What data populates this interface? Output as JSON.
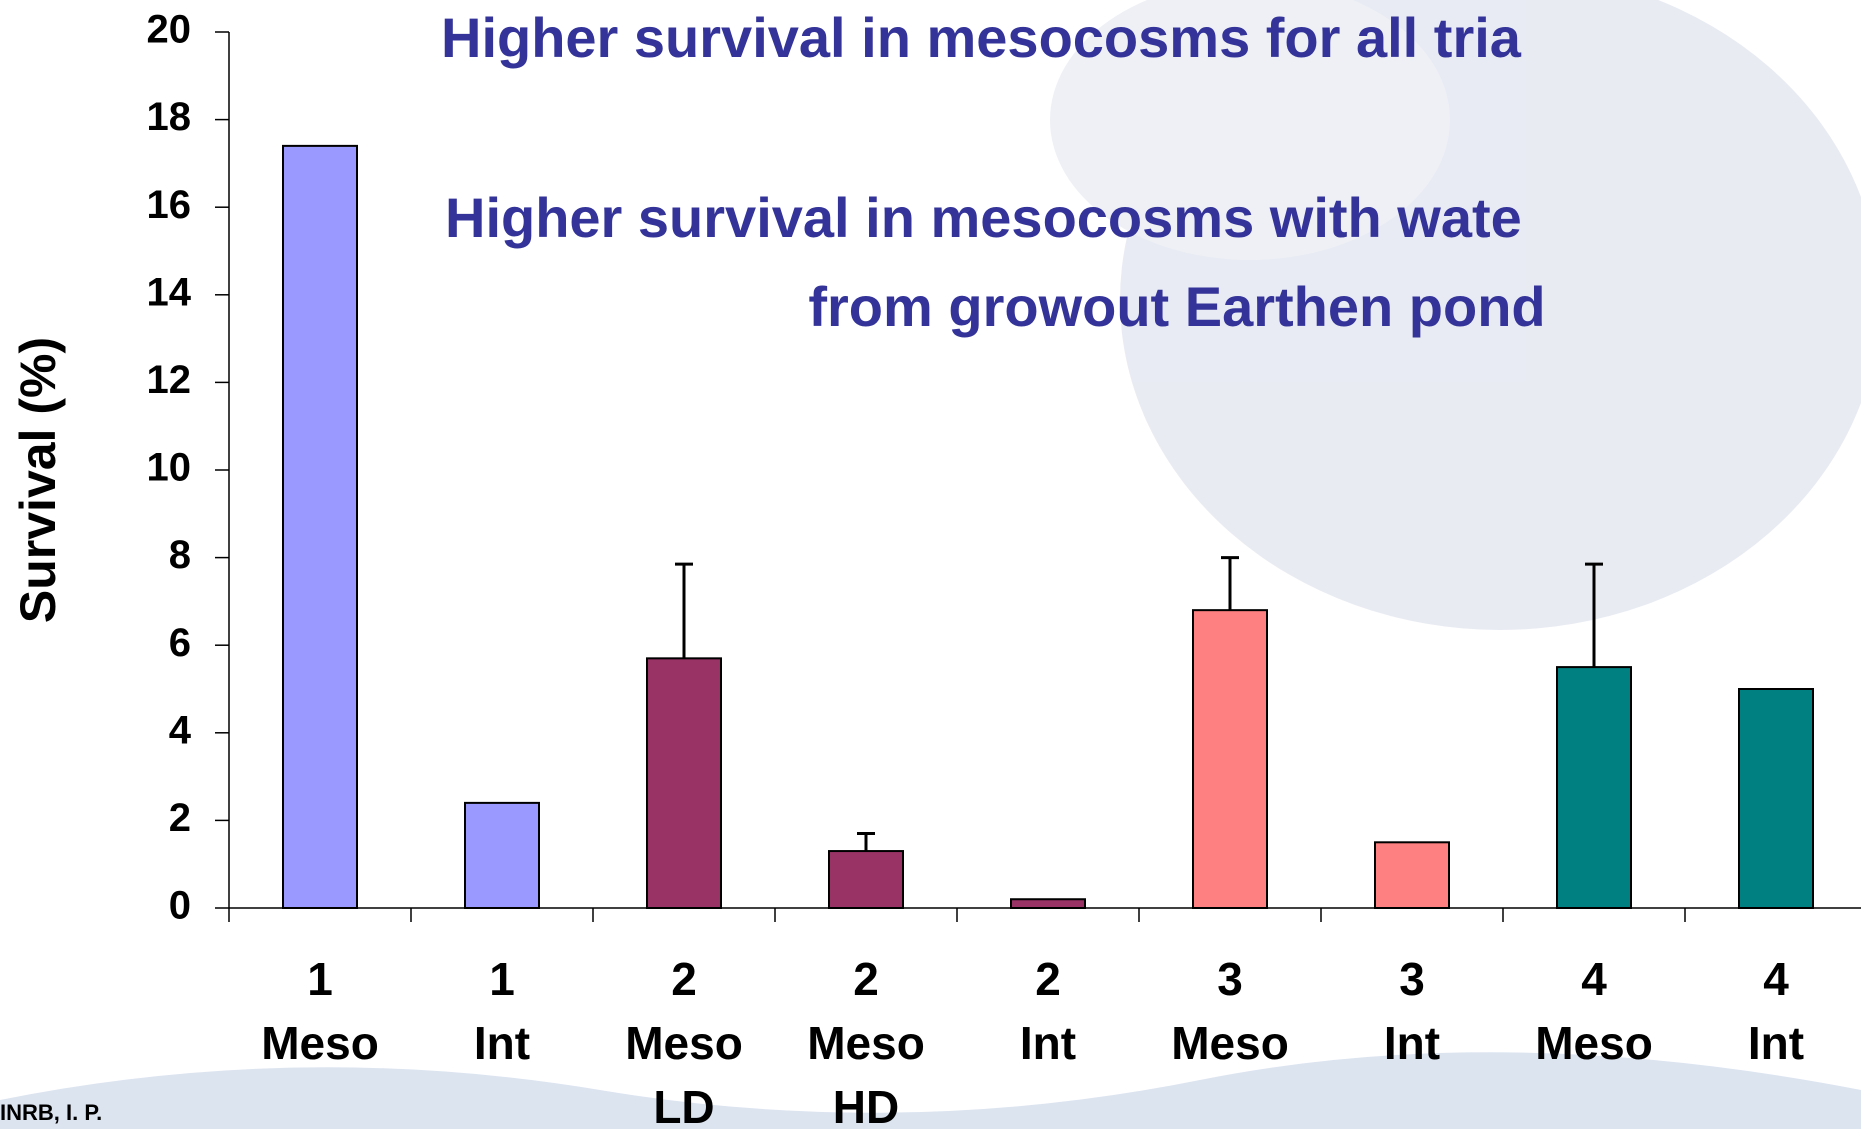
{
  "chart_data": {
    "type": "bar",
    "annotations": [
      "Higher survival in mesocosms for all tria",
      "Higher survival in mesocosms with wate",
      "from growout Earthen pond"
    ],
    "y_label": "Survival (%)",
    "footer": "INRB, I. P.",
    "categories": [
      [
        "1",
        "Meso"
      ],
      [
        "1",
        "Int"
      ],
      [
        "2",
        "Meso",
        "LD"
      ],
      [
        "2",
        "Meso",
        "HD"
      ],
      [
        "2",
        "Int"
      ],
      [
        "3",
        "Meso"
      ],
      [
        "3",
        "Int"
      ],
      [
        "4",
        "Meso"
      ],
      [
        "4",
        "Int"
      ]
    ],
    "values": [
      17.4,
      2.4,
      5.7,
      1.3,
      0.2,
      6.8,
      1.5,
      5.5,
      5.0
    ],
    "errors": [
      null,
      null,
      2.15,
      0.4,
      null,
      1.2,
      null,
      2.35,
      null
    ],
    "colors": [
      "#9999ff",
      "#9999ff",
      "#993366",
      "#993366",
      "#993366",
      "#ff8080",
      "#ff8080",
      "#008080",
      "#008080"
    ],
    "ylim": [
      0,
      20
    ],
    "yticks": [
      0,
      2,
      4,
      6,
      8,
      10,
      12,
      14,
      16,
      18,
      20
    ]
  }
}
